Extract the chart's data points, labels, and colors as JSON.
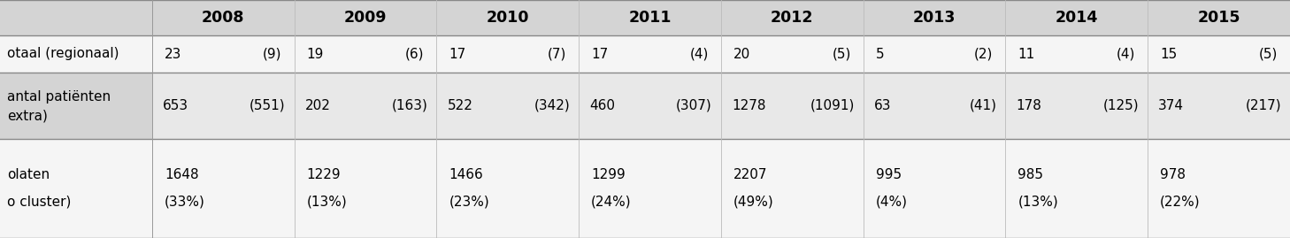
{
  "years": [
    "2008",
    "2009",
    "2010",
    "2011",
    "2012",
    "2013",
    "2014",
    "2015"
  ],
  "row1_main": [
    "23",
    "19",
    "17",
    "17",
    "20",
    "5",
    "11",
    "15"
  ],
  "row1_paren": [
    "(9)",
    "(6)",
    "(7)",
    "(4)",
    "(5)",
    "(2)",
    "(4)",
    "(5)"
  ],
  "row2_main": [
    "653",
    "202",
    "522",
    "460",
    "1278",
    "63",
    "178",
    "374"
  ],
  "row2_paren": [
    "(551)",
    "(163)",
    "(342)",
    "(307)",
    "(1091)",
    "(41)",
    "(125)",
    "(217)"
  ],
  "row3_line1": [
    "1648",
    "1229",
    "1466",
    "1299",
    "2207",
    "995",
    "985",
    "978"
  ],
  "row3_line2": [
    "(33%)",
    "(13%)",
    "(23%)",
    "(24%)",
    "(49%)",
    "(4%)",
    "(13%)",
    "(22%)"
  ],
  "bg_header": "#d4d4d4",
  "bg_row1": "#f5f5f5",
  "bg_row2": "#d4d4d4",
  "bg_row3": "#f5f5f5",
  "text_color": "#000000",
  "font_size": 11.0,
  "header_font_size": 12.5,
  "left_label_color": "#000000"
}
